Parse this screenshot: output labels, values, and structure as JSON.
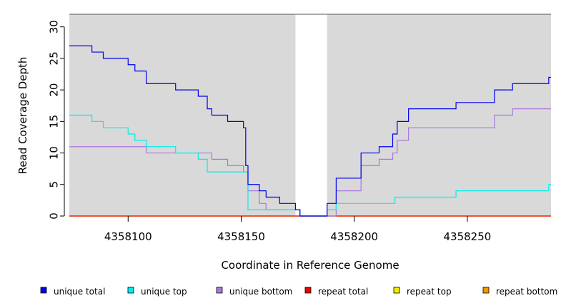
{
  "chart_data": {
    "type": "line",
    "xlabel": "Coordinate in Reference Genome",
    "ylabel": "Read Coverage Depth",
    "xlim": [
      4358074,
      4358287
    ],
    "ylim": [
      0,
      32
    ],
    "xticks": [
      4358100,
      4358150,
      4358200,
      4358250
    ],
    "yticks": [
      0,
      5,
      10,
      15,
      20,
      25,
      30
    ],
    "shaded_regions": [
      [
        4358074,
        4358174
      ],
      [
        4358188,
        4358287
      ]
    ],
    "legend_position": "bottom",
    "series": [
      {
        "name": "unique total",
        "color": "#0000ee",
        "x": [
          4358074,
          4358084,
          4358089,
          4358100,
          4358103,
          4358108,
          4358121,
          4358131,
          4358135,
          4358137,
          4358144,
          4358151,
          4358152,
          4358153,
          4358158,
          4358161,
          4358167,
          4358174,
          4358176,
          4358188,
          4358192,
          4358203,
          4358211,
          4358217,
          4358219,
          4358224,
          4358245,
          4358262,
          4358270,
          4358286,
          4358287
        ],
        "y": [
          27,
          26,
          25,
          24,
          23,
          21,
          20,
          19,
          17,
          16,
          15,
          14,
          8,
          5,
          4,
          3,
          2,
          1,
          0,
          2,
          6,
          10,
          11,
          13,
          15,
          17,
          18,
          20,
          21,
          22,
          22
        ]
      },
      {
        "name": "unique top",
        "color": "#00eeee",
        "x": [
          4358074,
          4358084,
          4358089,
          4358100,
          4358103,
          4358108,
          4358121,
          4358131,
          4358135,
          4358153,
          4358176,
          4358188,
          4358192,
          4358218,
          4358245,
          4358286,
          4358287
        ],
        "y": [
          16,
          15,
          14,
          13,
          12,
          11,
          10,
          9,
          7,
          1,
          0,
          1,
          2,
          3,
          4,
          5,
          5
        ]
      },
      {
        "name": "unique bottom",
        "color": "#aa77dd",
        "x": [
          4358074,
          4358108,
          4358137,
          4358144,
          4358151,
          4358153,
          4358158,
          4358161,
          4358170,
          4358176,
          4358191,
          4358192,
          4358203,
          4358211,
          4358217,
          4358219,
          4358224,
          4358262,
          4358270,
          4358287
        ],
        "y": [
          11,
          10,
          9,
          8,
          7,
          4,
          2,
          1,
          1,
          0,
          0,
          4,
          8,
          9,
          10,
          12,
          14,
          16,
          17,
          17
        ]
      },
      {
        "name": "repeat total",
        "color": "#ee0000",
        "x": [
          4358074,
          4358287
        ],
        "y": [
          0,
          0
        ]
      },
      {
        "name": "repeat top",
        "color": "#eeee00",
        "x": [
          4358074,
          4358287
        ],
        "y": [
          0,
          0
        ]
      },
      {
        "name": "repeat bottom",
        "color": "#ee9900",
        "x": [
          4358074,
          4358287
        ],
        "y": [
          0,
          0
        ]
      }
    ]
  }
}
